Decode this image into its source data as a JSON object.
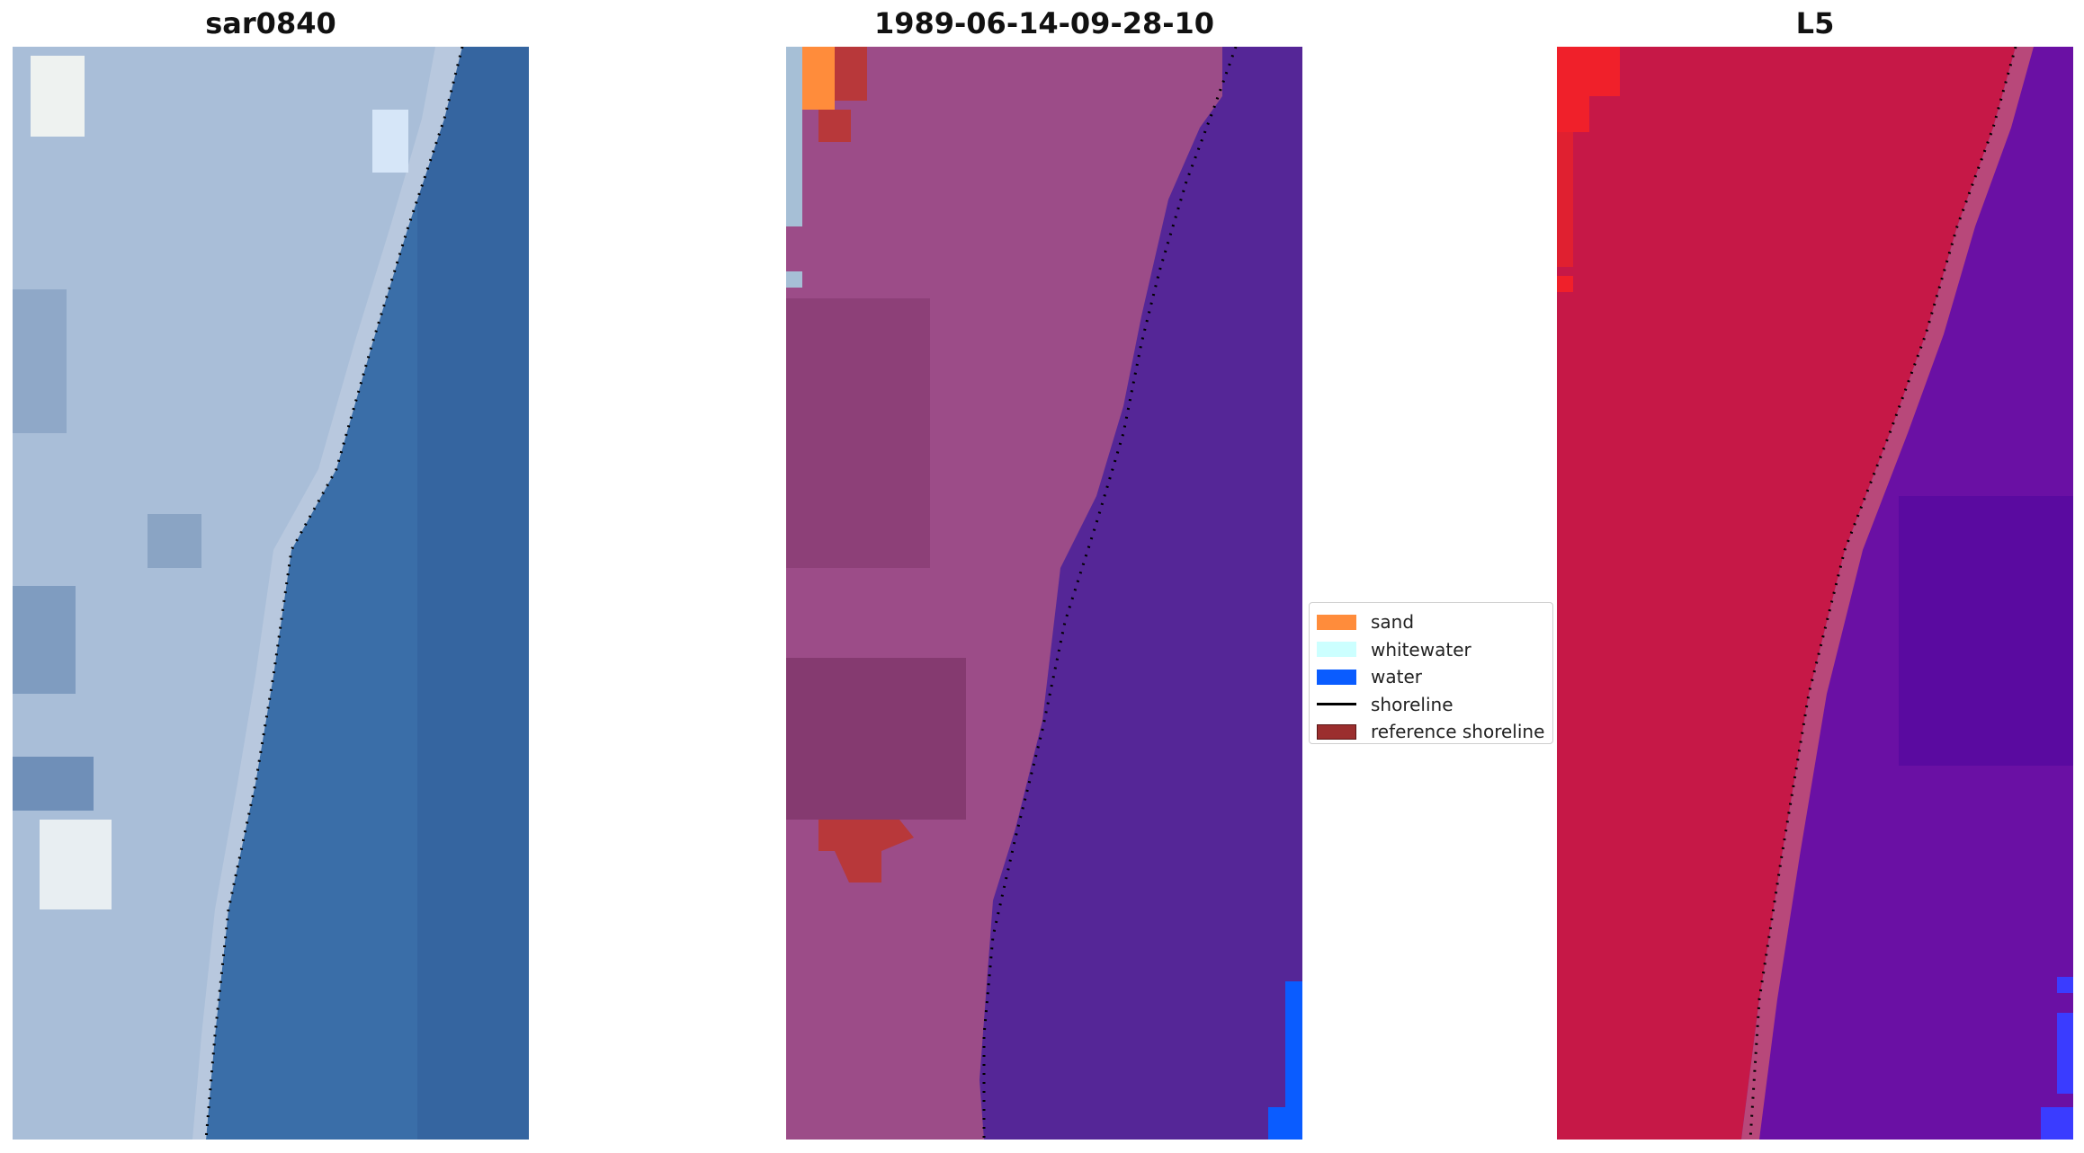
{
  "panels": [
    {
      "title": "sar0840",
      "image": "satellite RGB composite of coastline (land, surf and sea)"
    },
    {
      "title": "1989-06-14-09-28-10",
      "image": "classified image with purple water and magenta land"
    },
    {
      "title": "L5",
      "image": "false-colour index image, red land and violet water"
    }
  ],
  "legend": {
    "items": [
      {
        "label": "sand",
        "color": "#ff8c3b",
        "kind": "patch"
      },
      {
        "label": "whitewater",
        "color": "#ccffff",
        "kind": "patch"
      },
      {
        "label": "water",
        "color": "#0a5cff",
        "kind": "patch"
      },
      {
        "label": "shoreline",
        "color": "#000000",
        "kind": "line"
      },
      {
        "label": "reference shoreline",
        "color": "#9b2e2e",
        "kind": "patch"
      }
    ]
  },
  "colors": {
    "sea_rgb": "#3a6ea8",
    "land_rgb": "#a9bed8",
    "water_class": "#552697",
    "land_class": "#9c4c88",
    "land_index": "#c61847",
    "water_index": "#6a10a4"
  }
}
